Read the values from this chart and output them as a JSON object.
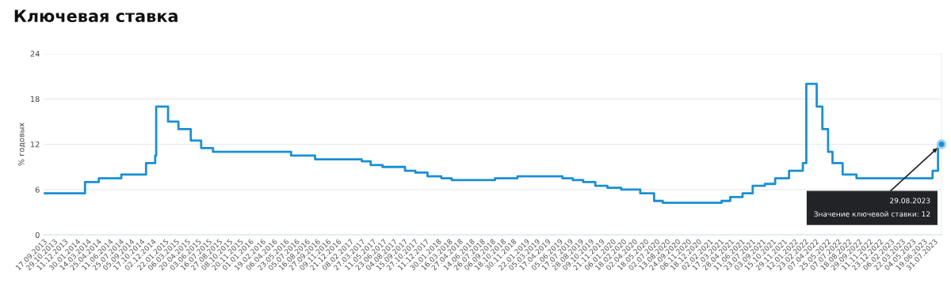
{
  "chart_data": {
    "type": "step",
    "title": "Ключевая ставка",
    "ylabel": "% годовых",
    "x": [
      "2013-09-17",
      "2014-03-03",
      "2014-04-28",
      "2014-07-28",
      "2014-11-05",
      "2014-12-12",
      "2014-12-16",
      "2015-02-02",
      "2015-03-16",
      "2015-05-05",
      "2015-06-16",
      "2015-08-03",
      "2016-06-14",
      "2016-09-19",
      "2017-03-27",
      "2017-05-02",
      "2017-06-19",
      "2017-09-18",
      "2017-10-30",
      "2017-12-18",
      "2018-02-12",
      "2018-03-26",
      "2018-09-17",
      "2018-12-17",
      "2019-06-17",
      "2019-07-29",
      "2019-09-09",
      "2019-10-28",
      "2019-12-16",
      "2020-02-10",
      "2020-04-27",
      "2020-06-22",
      "2020-07-27",
      "2021-03-22",
      "2021-04-26",
      "2021-06-15",
      "2021-07-26",
      "2021-09-13",
      "2021-10-25",
      "2021-12-20",
      "2022-02-14",
      "2022-02-28",
      "2022-04-11",
      "2022-05-04",
      "2022-05-27",
      "2022-06-14",
      "2022-07-25",
      "2022-09-19",
      "2023-07-24",
      "2023-08-15",
      "2023-08-29"
    ],
    "series": [
      {
        "color": "#1a8fd4",
        "values": [
          5.5,
          7,
          7.5,
          8,
          9.5,
          10.5,
          17,
          15,
          14,
          12.5,
          11.5,
          11,
          10.5,
          10,
          9.75,
          9.25,
          9,
          8.5,
          8.25,
          7.75,
          7.5,
          7.25,
          7.5,
          7.75,
          7.5,
          7.25,
          7,
          6.5,
          6.25,
          6,
          5.5,
          4.5,
          4.25,
          4.5,
          5,
          5.5,
          6.5,
          6.75,
          7.5,
          8.5,
          9.5,
          20,
          17,
          14,
          11,
          9.5,
          8,
          7.5,
          8.5,
          12,
          12
        ]
      }
    ],
    "xlim": [
      "2013-09-17",
      "2023-08-29"
    ],
    "xticks": [
      {
        "value": "2013-09-17",
        "label": "17.09.2013"
      },
      {
        "value": "2013-10-29",
        "label": "29.10.2013"
      },
      {
        "value": "2013-12-11",
        "label": "11.12.2013"
      },
      {
        "value": "2014-01-30",
        "label": "30.01.2014"
      },
      {
        "value": "2014-03-14",
        "label": "14.03.2014"
      },
      {
        "value": "2014-04-25",
        "label": "25.04.2014"
      },
      {
        "value": "2014-06-11",
        "label": "11.06.2014"
      },
      {
        "value": "2014-07-25",
        "label": "25.07.2014"
      },
      {
        "value": "2014-09-05",
        "label": "05.09.2014"
      },
      {
        "value": "2014-10-17",
        "label": "17.10.2014"
      },
      {
        "value": "2014-12-02",
        "label": "02.12.2014"
      },
      {
        "value": "2015-01-22",
        "label": "22.01.2015"
      },
      {
        "value": "2015-03-06",
        "label": "06.03.2015"
      },
      {
        "value": "2015-04-20",
        "label": "20.04.2015"
      },
      {
        "value": "2015-06-03",
        "label": "03.06.2015"
      },
      {
        "value": "2015-07-16",
        "label": "16.07.2015"
      },
      {
        "value": "2015-08-27",
        "label": "27.08.2015"
      },
      {
        "value": "2015-10-08",
        "label": "08.10.2015"
      },
      {
        "value": "2015-11-20",
        "label": "20.11.2015"
      },
      {
        "value": "2016-01-01",
        "label": "01.01.2016"
      },
      {
        "value": "2016-02-19",
        "label": "19.02.2016"
      },
      {
        "value": "2016-04-06",
        "label": "06.04.2016"
      },
      {
        "value": "2016-05-23",
        "label": "23.05.2016"
      },
      {
        "value": "2016-07-05",
        "label": "05.07.2016"
      },
      {
        "value": "2016-08-16",
        "label": "16.08.2016"
      },
      {
        "value": "2016-09-27",
        "label": "27.09.2016"
      },
      {
        "value": "2016-11-09",
        "label": "09.11.2016"
      },
      {
        "value": "2016-12-21",
        "label": "21.12.2016"
      },
      {
        "value": "2017-02-08",
        "label": "08.02.2017"
      },
      {
        "value": "2017-03-27",
        "label": "27.03.2017"
      },
      {
        "value": "2017-05-11",
        "label": "11.05.2017"
      },
      {
        "value": "2017-06-23",
        "label": "23.06.2017"
      },
      {
        "value": "2017-08-04",
        "label": "04.08.2017"
      },
      {
        "value": "2017-09-15",
        "label": "15.09.2017"
      },
      {
        "value": "2017-10-27",
        "label": "27.10.2017"
      },
      {
        "value": "2017-12-11",
        "label": "11.12.2017"
      },
      {
        "value": "2018-01-30",
        "label": "30.01.2018"
      },
      {
        "value": "2018-03-16",
        "label": "16.03.2018"
      },
      {
        "value": "2018-04-27",
        "label": "27.04.2018"
      },
      {
        "value": "2018-06-14",
        "label": "14.06.2018"
      },
      {
        "value": "2018-07-26",
        "label": "26.07.2018"
      },
      {
        "value": "2018-09-06",
        "label": "06.09.2018"
      },
      {
        "value": "2018-10-18",
        "label": "18.10.2018"
      },
      {
        "value": "2018-11-30",
        "label": "30.11.2018"
      },
      {
        "value": "2019-01-22",
        "label": "22.01.2019"
      },
      {
        "value": "2019-03-05",
        "label": "05.03.2019"
      },
      {
        "value": "2019-04-17",
        "label": "17.04.2019"
      },
      {
        "value": "2019-06-05",
        "label": "05.06.2019"
      },
      {
        "value": "2019-07-17",
        "label": "17.07.2019"
      },
      {
        "value": "2019-08-28",
        "label": "28.08.2019"
      },
      {
        "value": "2019-10-09",
        "label": "09.10.2019"
      },
      {
        "value": "2019-11-21",
        "label": "21.11.2019"
      },
      {
        "value": "2020-01-06",
        "label": "06.01.2020"
      },
      {
        "value": "2020-02-18",
        "label": "18.02.2020"
      },
      {
        "value": "2020-04-02",
        "label": "02.04.2020"
      },
      {
        "value": "2020-05-18",
        "label": "18.05.2020"
      },
      {
        "value": "2020-07-02",
        "label": "02.07.2020"
      },
      {
        "value": "2020-08-13",
        "label": "13.08.2020"
      },
      {
        "value": "2020-09-24",
        "label": "24.09.2020"
      },
      {
        "value": "2020-11-06",
        "label": "06.11.2020"
      },
      {
        "value": "2020-12-18",
        "label": "18.12.2020"
      },
      {
        "value": "2021-02-02",
        "label": "02.02.2021"
      },
      {
        "value": "2021-03-17",
        "label": "17.03.2021"
      },
      {
        "value": "2021-04-28",
        "label": "28.04.2021"
      },
      {
        "value": "2021-06-11",
        "label": "11.06.2021"
      },
      {
        "value": "2021-07-23",
        "label": "23.07.2021"
      },
      {
        "value": "2021-09-03",
        "label": "03.09.2021"
      },
      {
        "value": "2021-10-15",
        "label": "15.10.2021"
      },
      {
        "value": "2021-11-29",
        "label": "29.11.2021"
      },
      {
        "value": "2022-01-12",
        "label": "12.01.2022"
      },
      {
        "value": "2022-02-23",
        "label": "23.02.2022"
      },
      {
        "value": "2022-04-07",
        "label": "07.04.2022"
      },
      {
        "value": "2022-05-25",
        "label": "25.05.2022"
      },
      {
        "value": "2022-07-07",
        "label": "07.07.2022"
      },
      {
        "value": "2022-08-18",
        "label": "18.08.2022"
      },
      {
        "value": "2022-09-29",
        "label": "29.09.2022"
      },
      {
        "value": "2022-11-11",
        "label": "11.11.2022"
      },
      {
        "value": "2022-12-23",
        "label": "23.12.2022"
      },
      {
        "value": "2023-02-06",
        "label": "06.02.2023"
      },
      {
        "value": "2023-03-22",
        "label": "22.03.2023"
      },
      {
        "value": "2023-05-04",
        "label": "04.05.2023"
      },
      {
        "value": "2023-06-19",
        "label": "19.06.2023"
      },
      {
        "value": "2023-07-31",
        "label": "31.07.2023"
      }
    ],
    "ylim": [
      0,
      24
    ],
    "yticks": [
      0,
      6,
      12,
      18,
      24
    ],
    "grid": "y",
    "annotations": [
      {
        "text": "29.08.2023\nЗначение ключевой ставки: 12",
        "x": "2023-08-29",
        "y": 12
      }
    ]
  }
}
